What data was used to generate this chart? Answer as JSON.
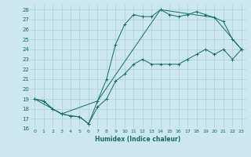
{
  "xlabel": "Humidex (Indice chaleur)",
  "xlim": [
    -0.5,
    23.5
  ],
  "ylim": [
    16,
    28.5
  ],
  "yticks": [
    16,
    17,
    18,
    19,
    20,
    21,
    22,
    23,
    24,
    25,
    26,
    27,
    28
  ],
  "xticks": [
    0,
    1,
    2,
    3,
    4,
    5,
    6,
    7,
    8,
    9,
    10,
    11,
    12,
    13,
    14,
    15,
    16,
    17,
    18,
    19,
    20,
    21,
    22,
    23
  ],
  "background_color": "#cce8ec",
  "line_color": "#1a6b5a",
  "grid_color": "#aad0d8",
  "lines": [
    {
      "x": [
        0,
        1,
        2,
        3,
        4,
        5,
        6,
        7,
        8,
        9,
        10,
        11,
        12,
        13,
        14,
        15,
        16,
        17,
        18,
        19,
        20,
        21,
        22,
        23
      ],
      "y": [
        19.0,
        18.8,
        18.0,
        17.5,
        17.3,
        17.2,
        16.5,
        18.2,
        19.0,
        20.8,
        21.5,
        22.5,
        23.0,
        22.5,
        22.5,
        22.5,
        22.5,
        23.0,
        23.5,
        24.0,
        23.5,
        24.0,
        23.0,
        24.0
      ]
    },
    {
      "x": [
        0,
        1,
        2,
        3,
        4,
        5,
        6,
        7,
        8,
        9,
        10,
        11,
        12,
        13,
        14,
        15,
        16,
        17,
        18,
        19,
        20,
        21,
        22,
        23
      ],
      "y": [
        19.0,
        18.8,
        18.0,
        17.5,
        17.3,
        17.2,
        16.5,
        18.8,
        21.0,
        24.5,
        26.5,
        27.5,
        27.3,
        27.3,
        28.0,
        27.5,
        27.3,
        27.5,
        27.8,
        27.5,
        27.2,
        26.8,
        25.0,
        24.0
      ]
    },
    {
      "x": [
        0,
        3,
        7,
        14,
        20,
        23
      ],
      "y": [
        19.0,
        17.5,
        18.8,
        28.0,
        27.2,
        24.0
      ]
    }
  ]
}
